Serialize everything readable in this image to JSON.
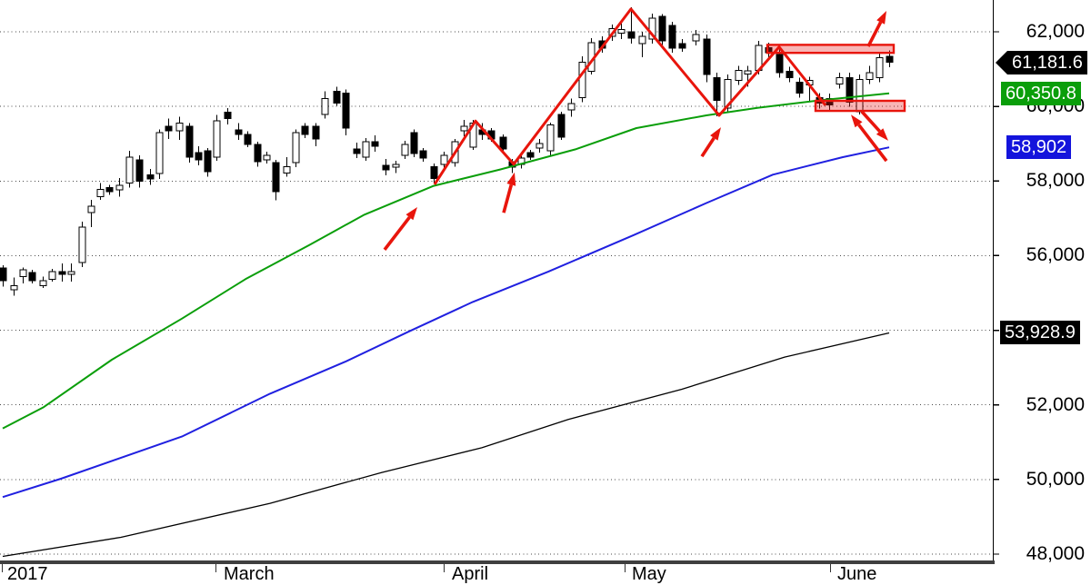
{
  "chart_data": {
    "type": "candlestick",
    "title": "",
    "timeframe": "daily",
    "grid": "horizontal-dotted",
    "ylim": [
      47860,
      62850
    ],
    "y_axis": {
      "side": "right",
      "grid_prices": [
        62000,
        60000,
        58000,
        56000,
        54000,
        52000,
        50000,
        48000
      ],
      "tick_labels": [
        {
          "price": 62000,
          "label": "62,000"
        },
        {
          "price": 60000,
          "label": "60,000"
        },
        {
          "price": 58000,
          "label": "58,000"
        },
        {
          "price": 56000,
          "label": "56,000"
        },
        {
          "price": 52000,
          "label": "52,000"
        },
        {
          "price": 50000,
          "label": "50,000"
        },
        {
          "price": 48000,
          "label": "48,000"
        }
      ],
      "badges": [
        {
          "text": "61,181.6",
          "price": 61181.6,
          "bg": "#000000",
          "pointer": true,
          "role": "last-price"
        },
        {
          "text": "60,350.8",
          "price": 60350.8,
          "bg": "#0a9e0a",
          "pointer": false,
          "role": "short-ma-value"
        },
        {
          "text": "58,902",
          "price": 58902,
          "bg": "#1414dc",
          "pointer": false,
          "role": "mid-ma-value"
        },
        {
          "text": "53,928.9",
          "price": 53928.9,
          "bg": "#000000",
          "pointer": false,
          "role": "long-ma-value"
        }
      ]
    },
    "x_axis": {
      "months": [
        {
          "label": "2017",
          "sep_x": 2,
          "label_x": 8
        },
        {
          "label": "March",
          "sep_x": 237,
          "label_x": 246
        },
        {
          "label": "April",
          "sep_x": 488,
          "label_x": 497
        },
        {
          "label": "May",
          "sep_x": 687,
          "label_x": 695
        },
        {
          "label": "June",
          "sep_x": 913,
          "label_x": 921
        }
      ]
    },
    "last_price": 61181.6,
    "candles": [
      [
        3,
        55670,
        55740,
        55170,
        55330
      ],
      [
        15,
        55080,
        55420,
        54930,
        55200
      ],
      [
        25,
        55440,
        55680,
        55250,
        55620
      ],
      [
        35,
        55550,
        55620,
        55250,
        55330
      ],
      [
        47,
        55200,
        55440,
        55130,
        55330
      ],
      [
        57,
        55370,
        55640,
        55300,
        55570
      ],
      [
        68,
        55570,
        55790,
        55300,
        55500
      ],
      [
        78,
        55500,
        55790,
        55300,
        55570
      ],
      [
        90,
        55810,
        56910,
        55690,
        56770
      ],
      [
        100,
        57160,
        57500,
        56770,
        57330
      ],
      [
        110,
        57580,
        57950,
        57500,
        57780
      ],
      [
        120,
        57830,
        57900,
        57630,
        57710
      ],
      [
        131,
        57760,
        58080,
        57580,
        57880
      ],
      [
        142,
        57950,
        58810,
        57830,
        58640
      ],
      [
        153,
        58570,
        58690,
        57830,
        58000
      ],
      [
        165,
        58170,
        58320,
        57900,
        58050
      ],
      [
        175,
        58200,
        59380,
        58050,
        59300
      ],
      [
        185,
        59470,
        59670,
        59130,
        59350
      ],
      [
        197,
        59350,
        59720,
        59100,
        59550
      ],
      [
        208,
        59470,
        59550,
        58490,
        58640
      ],
      [
        218,
        58760,
        58930,
        58420,
        58570
      ],
      [
        228,
        58810,
        58880,
        58120,
        58250
      ],
      [
        238,
        58640,
        59770,
        58540,
        59620
      ],
      [
        250,
        59840,
        59960,
        59520,
        59670
      ],
      [
        262,
        59370,
        59550,
        59100,
        59250
      ],
      [
        272,
        59250,
        59330,
        58910,
        58980
      ],
      [
        283,
        58980,
        59060,
        58390,
        58520
      ],
      [
        293,
        58570,
        58790,
        58470,
        58690
      ],
      [
        303,
        58490,
        58570,
        57480,
        57710
      ],
      [
        315,
        58220,
        58640,
        58120,
        58390
      ],
      [
        325,
        58490,
        59380,
        58370,
        59300
      ],
      [
        335,
        59470,
        59550,
        59150,
        59250
      ],
      [
        347,
        59470,
        59550,
        58930,
        59130
      ],
      [
        357,
        59790,
        60400,
        59670,
        60210
      ],
      [
        370,
        60400,
        60530,
        60010,
        60090
      ],
      [
        380,
        60360,
        60450,
        59230,
        59420
      ],
      [
        392,
        58860,
        59030,
        58620,
        58740
      ],
      [
        402,
        58640,
        59150,
        58540,
        59060
      ],
      [
        412,
        59060,
        59230,
        58790,
        58930
      ],
      [
        424,
        58420,
        58590,
        58150,
        58300
      ],
      [
        435,
        58370,
        58540,
        58220,
        58440
      ],
      [
        445,
        58690,
        59080,
        58590,
        58980
      ],
      [
        455,
        59300,
        59380,
        58640,
        58740
      ],
      [
        465,
        58810,
        58880,
        58520,
        58610
      ],
      [
        477,
        58390,
        58470,
        57950,
        58070
      ],
      [
        488,
        58440,
        58790,
        58340,
        58690
      ],
      [
        500,
        58490,
        59130,
        58390,
        59060
      ],
      [
        510,
        59350,
        59640,
        59200,
        59470
      ],
      [
        520,
        58910,
        59640,
        58830,
        59550
      ],
      [
        530,
        59370,
        59550,
        59100,
        59250
      ],
      [
        540,
        59350,
        59420,
        59050,
        59130
      ],
      [
        553,
        59180,
        59250,
        58740,
        58860
      ],
      [
        563,
        58520,
        58590,
        58220,
        58370
      ],
      [
        573,
        58440,
        58690,
        58340,
        58610
      ],
      [
        583,
        58760,
        58830,
        58570,
        58640
      ],
      [
        593,
        58880,
        59130,
        58760,
        59010
      ],
      [
        605,
        58810,
        59570,
        58690,
        59500
      ],
      [
        617,
        59790,
        59860,
        59100,
        59180
      ],
      [
        628,
        59910,
        60210,
        59720,
        60080
      ],
      [
        640,
        60230,
        61340,
        60110,
        61190
      ],
      [
        650,
        60940,
        61830,
        60850,
        61710
      ],
      [
        662,
        61760,
        61880,
        61440,
        61560
      ],
      [
        673,
        61880,
        62200,
        61760,
        62080
      ],
      [
        683,
        61960,
        62250,
        61810,
        62060
      ],
      [
        694,
        62000,
        62660,
        61680,
        61830
      ],
      [
        706,
        61680,
        62000,
        61320,
        61880
      ],
      [
        717,
        61800,
        62490,
        61680,
        62370
      ],
      [
        728,
        62420,
        62470,
        61590,
        61760
      ],
      [
        739,
        62170,
        62270,
        61440,
        61560
      ],
      [
        750,
        61680,
        61810,
        61460,
        61560
      ],
      [
        765,
        61760,
        62050,
        61630,
        61930
      ],
      [
        777,
        61800,
        61930,
        60650,
        60850
      ],
      [
        788,
        60770,
        60900,
        59740,
        60160
      ],
      [
        800,
        59960,
        60850,
        59860,
        60720
      ],
      [
        812,
        60700,
        61090,
        60580,
        60970
      ],
      [
        822,
        60870,
        61090,
        60530,
        60950
      ],
      [
        834,
        60970,
        61760,
        60850,
        61630
      ],
      [
        845,
        61580,
        61710,
        61310,
        61440
      ],
      [
        857,
        61390,
        61560,
        60770,
        60900
      ],
      [
        868,
        60940,
        61060,
        60650,
        60770
      ],
      [
        879,
        60650,
        60770,
        60230,
        60360
      ],
      [
        890,
        60580,
        60800,
        60110,
        60700
      ],
      [
        901,
        60230,
        60360,
        59940,
        60090
      ],
      [
        912,
        60210,
        60340,
        59890,
        60040
      ],
      [
        923,
        60600,
        60900,
        60480,
        60770
      ],
      [
        934,
        60770,
        60900,
        59990,
        60110
      ],
      [
        945,
        59860,
        60850,
        59790,
        60720
      ],
      [
        956,
        60720,
        61090,
        60600,
        60900
      ],
      [
        967,
        60770,
        61430,
        60650,
        61310
      ],
      [
        978,
        61340,
        61500,
        61050,
        61181.6
      ]
    ],
    "moving_averages": [
      {
        "name": "long-term-ma",
        "color": "#000000",
        "width": 1.3,
        "points": [
          [
            3,
            47940
          ],
          [
            133,
            48450
          ],
          [
            297,
            49360
          ],
          [
            420,
            50190
          ],
          [
            530,
            50850
          ],
          [
            625,
            51610
          ],
          [
            750,
            52420
          ],
          [
            863,
            53280
          ],
          [
            978,
            53928.9
          ]
        ]
      },
      {
        "name": "mid-term-ma",
        "color": "#2020e0",
        "width": 2,
        "points": [
          [
            3,
            49530
          ],
          [
            67,
            50020
          ],
          [
            200,
            51150
          ],
          [
            297,
            52300
          ],
          [
            380,
            53160
          ],
          [
            450,
            53970
          ],
          [
            520,
            54760
          ],
          [
            603,
            55570
          ],
          [
            697,
            56550
          ],
          [
            777,
            57410
          ],
          [
            850,
            58170
          ],
          [
            927,
            58640
          ],
          [
            978,
            58902
          ]
        ]
      },
      {
        "name": "short-term-ma",
        "color": "#0a9e0a",
        "width": 2,
        "points": [
          [
            3,
            51370
          ],
          [
            48,
            51940
          ],
          [
            123,
            53210
          ],
          [
            200,
            54310
          ],
          [
            270,
            55370
          ],
          [
            340,
            56280
          ],
          [
            400,
            57090
          ],
          [
            477,
            57870
          ],
          [
            550,
            58310
          ],
          [
            633,
            58850
          ],
          [
            700,
            59420
          ],
          [
            777,
            59760
          ],
          [
            833,
            59960
          ],
          [
            900,
            60160
          ],
          [
            978,
            60350.8
          ]
        ]
      }
    ],
    "annotations": {
      "color": "#e8150c",
      "zigzag": [
        [
          478,
          57910
        ],
        [
          523,
          59610
        ],
        [
          565,
          58450
        ],
        [
          694,
          62610
        ],
        [
          791,
          59760
        ],
        [
          857,
          61590
        ],
        [
          908,
          60030
        ]
      ],
      "arrows": [
        {
          "from": [
            423,
            56160
          ],
          "to": [
            459,
            57300
          ]
        },
        {
          "from": [
            554,
            57150
          ],
          "to": [
            566,
            58230
          ]
        },
        {
          "from": [
            772,
            58660
          ],
          "to": [
            793,
            59440
          ]
        },
        {
          "from": [
            955,
            61610
          ],
          "to": [
            975,
            62560
          ]
        },
        {
          "from": [
            975,
            58540
          ],
          "to": [
            936,
            59780
          ]
        },
        {
          "from": [
            948,
            59860
          ],
          "to": [
            977,
            59080
          ]
        }
      ],
      "zones": [
        {
          "name": "resistance",
          "x1": 844,
          "x2": 983,
          "p1": 61650,
          "p2": 61435
        },
        {
          "name": "support",
          "x1": 897,
          "x2": 995,
          "p1": 60150,
          "p2": 59880
        }
      ]
    }
  }
}
